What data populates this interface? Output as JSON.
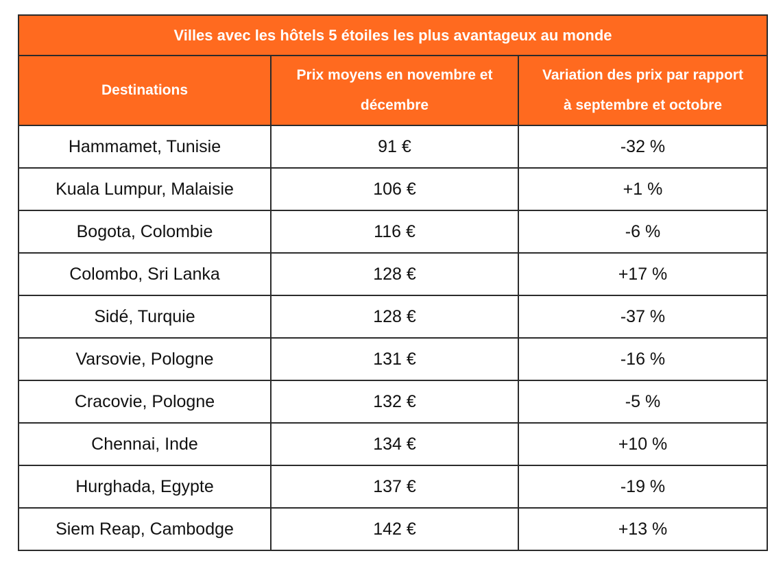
{
  "table": {
    "title": "Villes avec les hôtels 5 étoiles les plus avantageux au monde",
    "headers": [
      "Destinations",
      "Prix moyens en novembre et décembre",
      "Variation des prix par rapport à septembre et octobre"
    ],
    "header_lines": [
      [
        "Destinations"
      ],
      [
        "Prix moyens en novembre et",
        "décembre"
      ],
      [
        "Variation des prix par rapport",
        "à septembre et octobre"
      ]
    ],
    "rows": [
      [
        "Hammamet, Tunisie",
        "91 €",
        "-32 %"
      ],
      [
        "Kuala Lumpur, Malaisie",
        "106 €",
        "+1 %"
      ],
      [
        "Bogota, Colombie",
        "116 €",
        "-6 %"
      ],
      [
        "Colombo, Sri Lanka",
        "128 €",
        "+17 %"
      ],
      [
        "Sidé, Turquie",
        "128 €",
        "-37 %"
      ],
      [
        "Varsovie, Pologne",
        "131 €",
        "-16 %"
      ],
      [
        "Cracovie, Pologne",
        "132 €",
        "-5 %"
      ],
      [
        "Chennai, Inde",
        "134 €",
        "+10 %"
      ],
      [
        "Hurghada, Egypte",
        "137 €",
        "-19 %"
      ],
      [
        "Siem Reap, Cambodge",
        "142 €",
        "+13 %"
      ]
    ]
  },
  "colors": {
    "header_background": "#ff6a1f",
    "header_text": "#ffffff",
    "border": "#2b2b2b"
  }
}
